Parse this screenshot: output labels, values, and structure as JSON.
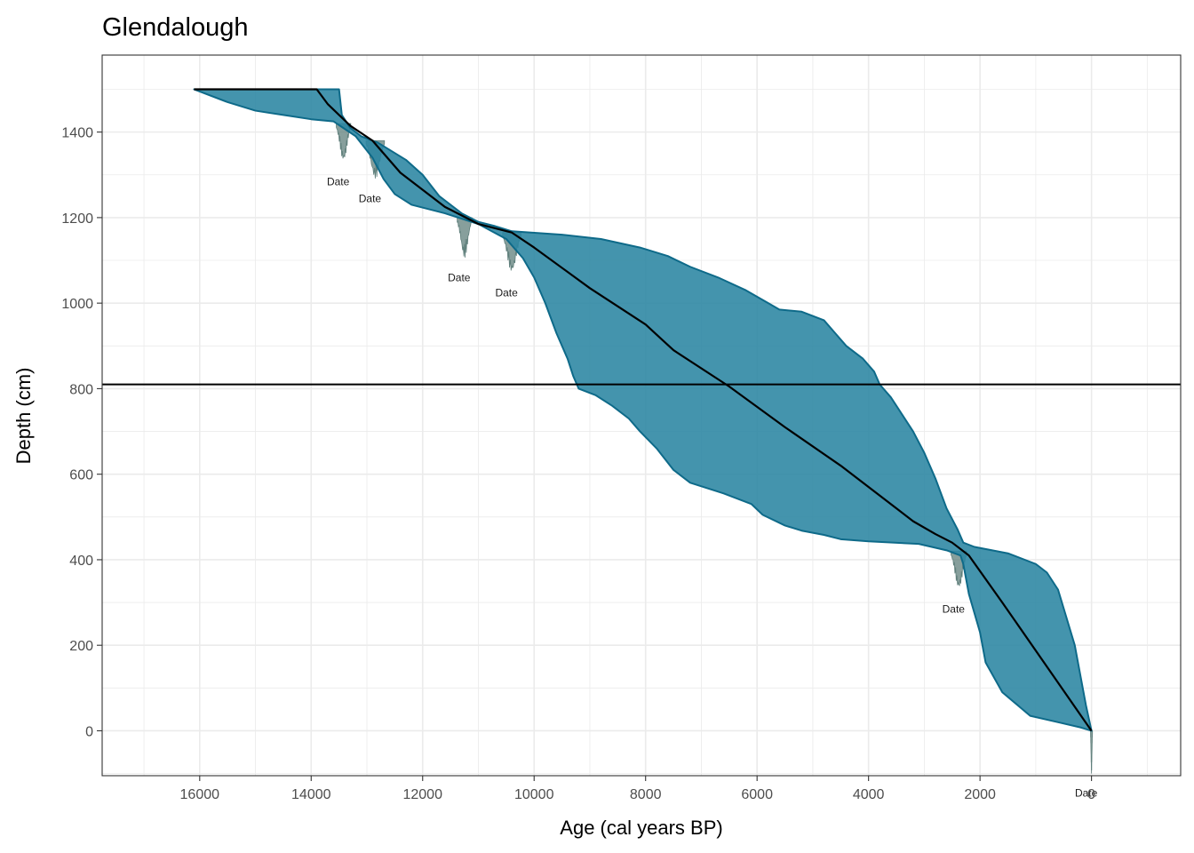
{
  "chart_data": {
    "type": "area",
    "title": "Glendalough",
    "xlabel": "Age (cal years BP)",
    "ylabel": "Depth (cm)",
    "xlim": [
      17750,
      -1600
    ],
    "ylim": [
      1580,
      -105
    ],
    "x_reversed": true,
    "y_reversed": true,
    "grid": true,
    "x_ticks": [
      16000,
      14000,
      12000,
      10000,
      8000,
      6000,
      4000,
      2000,
      0
    ],
    "y_ticks": [
      0,
      200,
      400,
      600,
      800,
      1000,
      1200,
      1400
    ],
    "hline_depth": 810,
    "colors": {
      "band_fill": "#2a85a2",
      "band_stroke": "#0e6a89",
      "median_line": "#000000",
      "date_fill": "#5f7f7b",
      "grid": "#ebebeb"
    },
    "series": [
      {
        "name": "",
        "kind": "band_old_edge",
        "points": [
          [
            0,
            0
          ],
          [
            200,
            8
          ],
          [
            600,
            20
          ],
          [
            1100,
            35
          ],
          [
            1600,
            90
          ],
          [
            1900,
            160
          ],
          [
            2000,
            230
          ],
          [
            2200,
            320
          ],
          [
            2300,
            390
          ],
          [
            2350,
            410
          ],
          [
            2600,
            422
          ],
          [
            3100,
            437
          ],
          [
            4000,
            443
          ],
          [
            4500,
            448
          ],
          [
            4800,
            458
          ],
          [
            5200,
            468
          ],
          [
            5500,
            480
          ],
          [
            5900,
            505
          ],
          [
            6100,
            530
          ],
          [
            6600,
            555
          ],
          [
            7200,
            580
          ],
          [
            7500,
            610
          ],
          [
            7800,
            660
          ],
          [
            8100,
            700
          ],
          [
            8300,
            730
          ],
          [
            8600,
            760
          ],
          [
            8900,
            785
          ],
          [
            9200,
            800
          ],
          [
            9300,
            830
          ],
          [
            9400,
            870
          ],
          [
            9600,
            930
          ],
          [
            9800,
            1000
          ],
          [
            10000,
            1060
          ],
          [
            10200,
            1105
          ],
          [
            10500,
            1150
          ],
          [
            11000,
            1185
          ],
          [
            11600,
            1210
          ],
          [
            12200,
            1230
          ],
          [
            12500,
            1255
          ],
          [
            12700,
            1290
          ],
          [
            12900,
            1340
          ],
          [
            13200,
            1390
          ],
          [
            13600,
            1425
          ],
          [
            14000,
            1430
          ],
          [
            14500,
            1440
          ],
          [
            15000,
            1450
          ],
          [
            15500,
            1470
          ],
          [
            16100,
            1500
          ]
        ]
      },
      {
        "name": "",
        "kind": "band_young_edge",
        "points": [
          [
            0,
            0
          ],
          [
            100,
            60
          ],
          [
            300,
            200
          ],
          [
            600,
            330
          ],
          [
            800,
            370
          ],
          [
            1000,
            390
          ],
          [
            1500,
            415
          ],
          [
            2100,
            430
          ],
          [
            2300,
            440
          ],
          [
            2400,
            470
          ],
          [
            2600,
            520
          ],
          [
            2800,
            590
          ],
          [
            3000,
            650
          ],
          [
            3200,
            700
          ],
          [
            3400,
            740
          ],
          [
            3600,
            780
          ],
          [
            3800,
            810
          ],
          [
            3900,
            840
          ],
          [
            4100,
            870
          ],
          [
            4400,
            900
          ],
          [
            4600,
            930
          ],
          [
            4800,
            960
          ],
          [
            5200,
            980
          ],
          [
            5600,
            985
          ],
          [
            5800,
            1000
          ],
          [
            6200,
            1030
          ],
          [
            6700,
            1060
          ],
          [
            7200,
            1085
          ],
          [
            7600,
            1110
          ],
          [
            8100,
            1130
          ],
          [
            8800,
            1150
          ],
          [
            9500,
            1160
          ],
          [
            10400,
            1168
          ],
          [
            10700,
            1180
          ],
          [
            11000,
            1190
          ],
          [
            11300,
            1210
          ],
          [
            11700,
            1250
          ],
          [
            12000,
            1300
          ],
          [
            12300,
            1335
          ],
          [
            12800,
            1375
          ],
          [
            13100,
            1390
          ],
          [
            13300,
            1410
          ],
          [
            13450,
            1440
          ],
          [
            13500,
            1500
          ]
        ]
      },
      {
        "name": "",
        "kind": "median",
        "points": [
          [
            0,
            0
          ],
          [
            1600,
            300
          ],
          [
            2200,
            410
          ],
          [
            2500,
            440
          ],
          [
            2800,
            460
          ],
          [
            3200,
            490
          ],
          [
            3500,
            520
          ],
          [
            4500,
            620
          ],
          [
            5500,
            710
          ],
          [
            6500,
            805
          ],
          [
            7500,
            890
          ],
          [
            8000,
            950
          ],
          [
            9000,
            1035
          ],
          [
            10000,
            1130
          ],
          [
            10400,
            1165
          ],
          [
            11000,
            1185
          ],
          [
            11600,
            1225
          ],
          [
            12000,
            1265
          ],
          [
            12400,
            1305
          ],
          [
            12900,
            1380
          ],
          [
            13300,
            1415
          ],
          [
            13700,
            1465
          ],
          [
            13900,
            1500
          ],
          [
            16100,
            1500
          ]
        ]
      }
    ],
    "dates": [
      {
        "label": "Date",
        "age": 0,
        "depth": 0,
        "spread": 35,
        "height": 100
      },
      {
        "label": "Date",
        "age": 2380,
        "depth": 420,
        "spread": 280,
        "height": 90
      },
      {
        "label": "Date",
        "age": 10400,
        "depth": 1165,
        "spread": 330,
        "height": 95
      },
      {
        "label": "Date",
        "age": 11250,
        "depth": 1200,
        "spread": 260,
        "height": 95
      },
      {
        "label": "Date",
        "age": 12850,
        "depth": 1380,
        "spread": 330,
        "height": 90
      },
      {
        "label": "Date",
        "age": 13420,
        "depth": 1420,
        "spread": 260,
        "height": 90
      }
    ]
  }
}
